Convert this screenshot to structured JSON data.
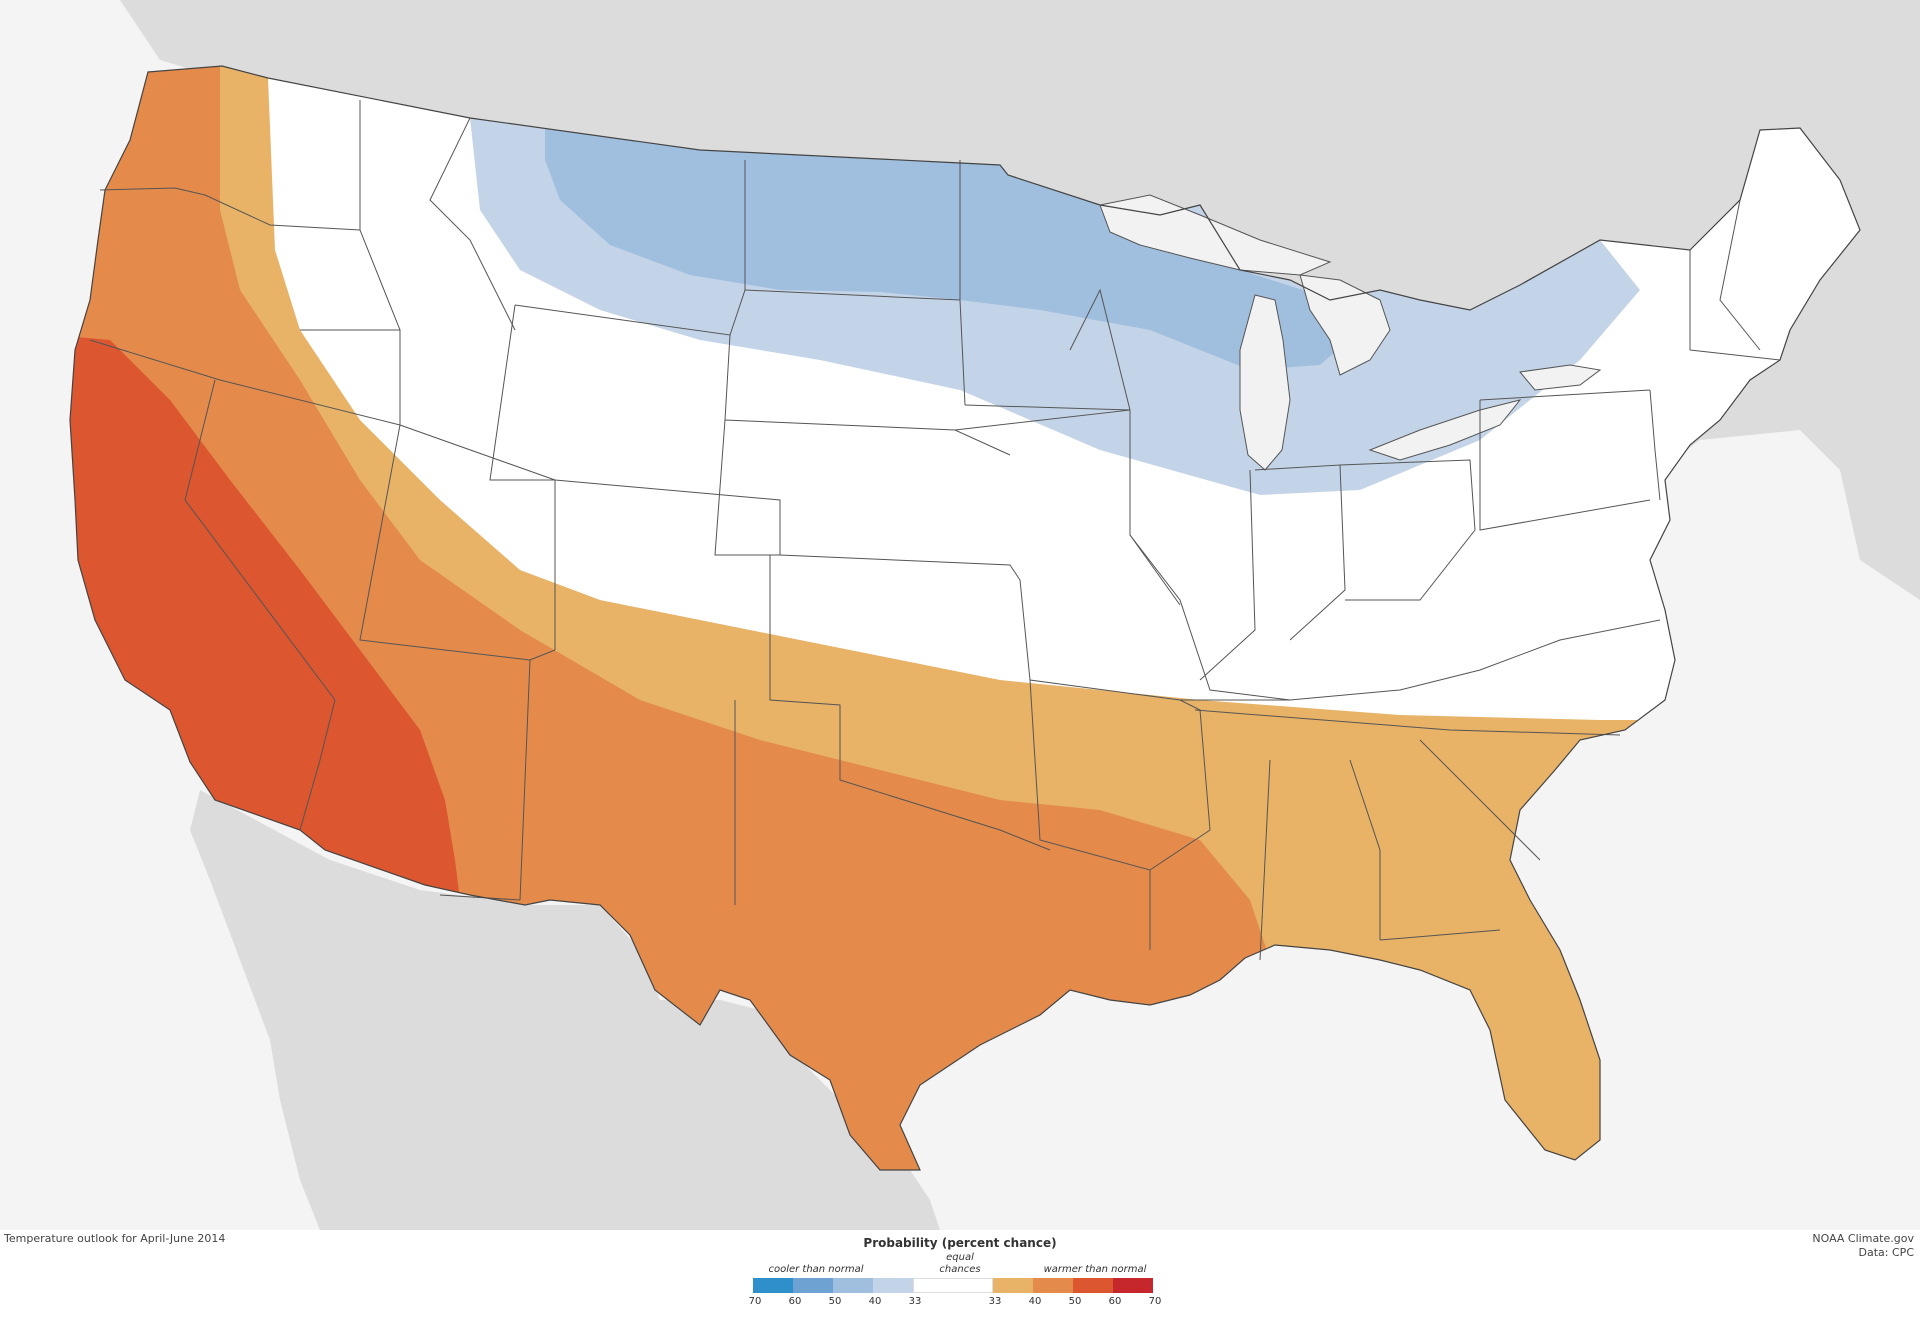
{
  "caption": "Temperature outlook for April-June 2014",
  "credit": {
    "line1": "NOAA Climate.gov",
    "line2": "Data: CPC"
  },
  "legend": {
    "title": "Probability (percent chance)",
    "cooler_label": "cooler than normal",
    "equal_line1": "equal",
    "equal_line2": "chances",
    "warmer_label": "warmer than normal",
    "ticks": [
      "70",
      "60",
      "50",
      "40",
      "33",
      "33",
      "40",
      "50",
      "60",
      "70"
    ],
    "colors": [
      "#2e8fcb",
      "#6da2d3",
      "#a0bfde",
      "#c4d4e8",
      "#ffffff",
      "#e8b367",
      "#e48a4b",
      "#dc5630",
      "#c5272c"
    ]
  },
  "zones": [
    {
      "name": "cooler 40-50",
      "color": "#a0bfde"
    },
    {
      "name": "cooler 33-40",
      "color": "#c4d4e8"
    },
    {
      "name": "equal chances",
      "color": "#ffffff"
    },
    {
      "name": "warmer 33-40",
      "color": "#e8b367"
    },
    {
      "name": "warmer 40-50",
      "color": "#e48a4b"
    },
    {
      "name": "warmer 50-60",
      "color": "#dc5630"
    }
  ],
  "colors": {
    "ocean": "#f4f4f4",
    "land": "#dcdcdc",
    "lakes": "#f2f2f2",
    "borders": "#555555"
  }
}
